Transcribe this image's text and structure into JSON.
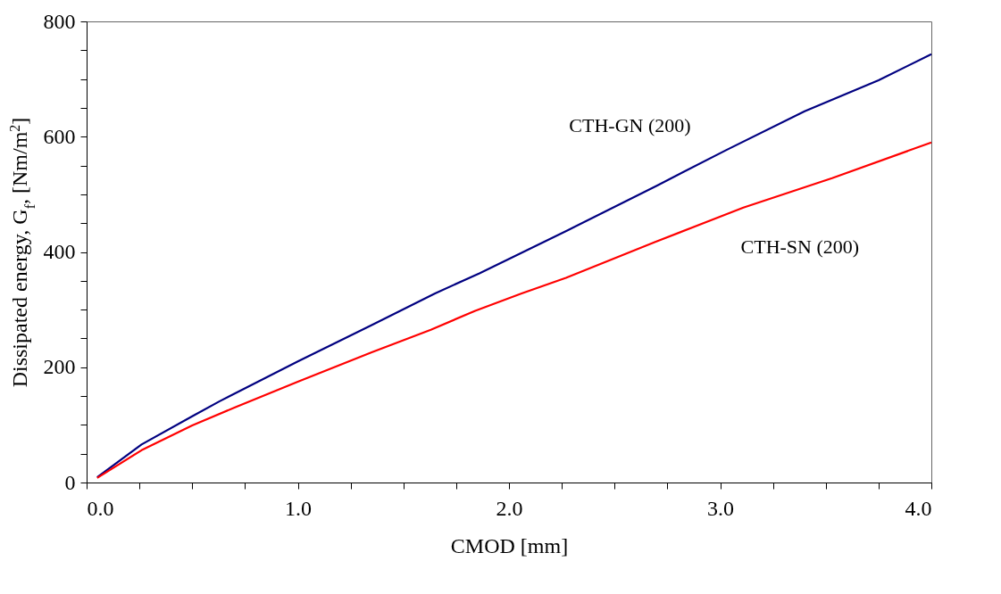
{
  "chart_data": {
    "type": "line",
    "xlabel": "CMOD [mm]",
    "ylabel": "Dissipated energy, G$_{f}$, [Nm/m$^{2}$]",
    "xlim": [
      0,
      4
    ],
    "ylim": [
      0,
      800
    ],
    "xticks": [
      {
        "value": 0,
        "label": "0.0"
      },
      {
        "value": 0.25,
        "label": null
      },
      {
        "value": 0.5,
        "label": null
      },
      {
        "value": 0.75,
        "label": null
      },
      {
        "value": 1,
        "label": "1.0"
      },
      {
        "value": 1.25,
        "label": null
      },
      {
        "value": 1.5,
        "label": null
      },
      {
        "value": 1.75,
        "label": null
      },
      {
        "value": 2,
        "label": "2.0"
      },
      {
        "value": 2.25,
        "label": null
      },
      {
        "value": 2.5,
        "label": null
      },
      {
        "value": 2.75,
        "label": null
      },
      {
        "value": 3,
        "label": "3.0"
      },
      {
        "value": 3.25,
        "label": null
      },
      {
        "value": 3.5,
        "label": null
      },
      {
        "value": 3.75,
        "label": null
      },
      {
        "value": 4,
        "label": "4.0"
      }
    ],
    "yticks": [
      0,
      {
        "value": 50,
        "label": null
      },
      {
        "value": 100,
        "label": null
      },
      {
        "value": 150,
        "label": null
      },
      200,
      {
        "value": 250,
        "label": null
      },
      {
        "value": 300,
        "label": null
      },
      {
        "value": 350,
        "label": null
      },
      400,
      {
        "value": 450,
        "label": null
      },
      {
        "value": 500,
        "label": null
      },
      {
        "value": 550,
        "label": null
      },
      600,
      {
        "value": 650,
        "label": null
      },
      {
        "value": 700,
        "label": null
      },
      {
        "value": 750,
        "label": null
      },
      800
    ],
    "grid": false,
    "legend": false,
    "line_style": "solid",
    "series": [
      {
        "name": "CTH-GN (200)",
        "color": "#000080",
        "x": [
          0.05,
          0.26,
          0.5,
          0.63,
          1.0,
          1.35,
          1.65,
          1.86,
          2.28,
          2.7,
          3.03,
          3.4,
          3.75,
          4.0
        ],
        "values": [
          9,
          66,
          115,
          141,
          210,
          273,
          328,
          363,
          438,
          515,
          577,
          644,
          698,
          743
        ]
      },
      {
        "name": "CTH-SN (200)",
        "color": "#ff0000",
        "x": [
          0.05,
          0.26,
          0.5,
          0.7,
          1.0,
          1.35,
          1.63,
          1.84,
          2.06,
          2.27,
          2.69,
          3.11,
          3.53,
          4.0
        ],
        "values": [
          8,
          56,
          99,
          130,
          175,
          226,
          265,
          298,
          328,
          355,
          417,
          477,
          528,
          590
        ]
      }
    ]
  }
}
